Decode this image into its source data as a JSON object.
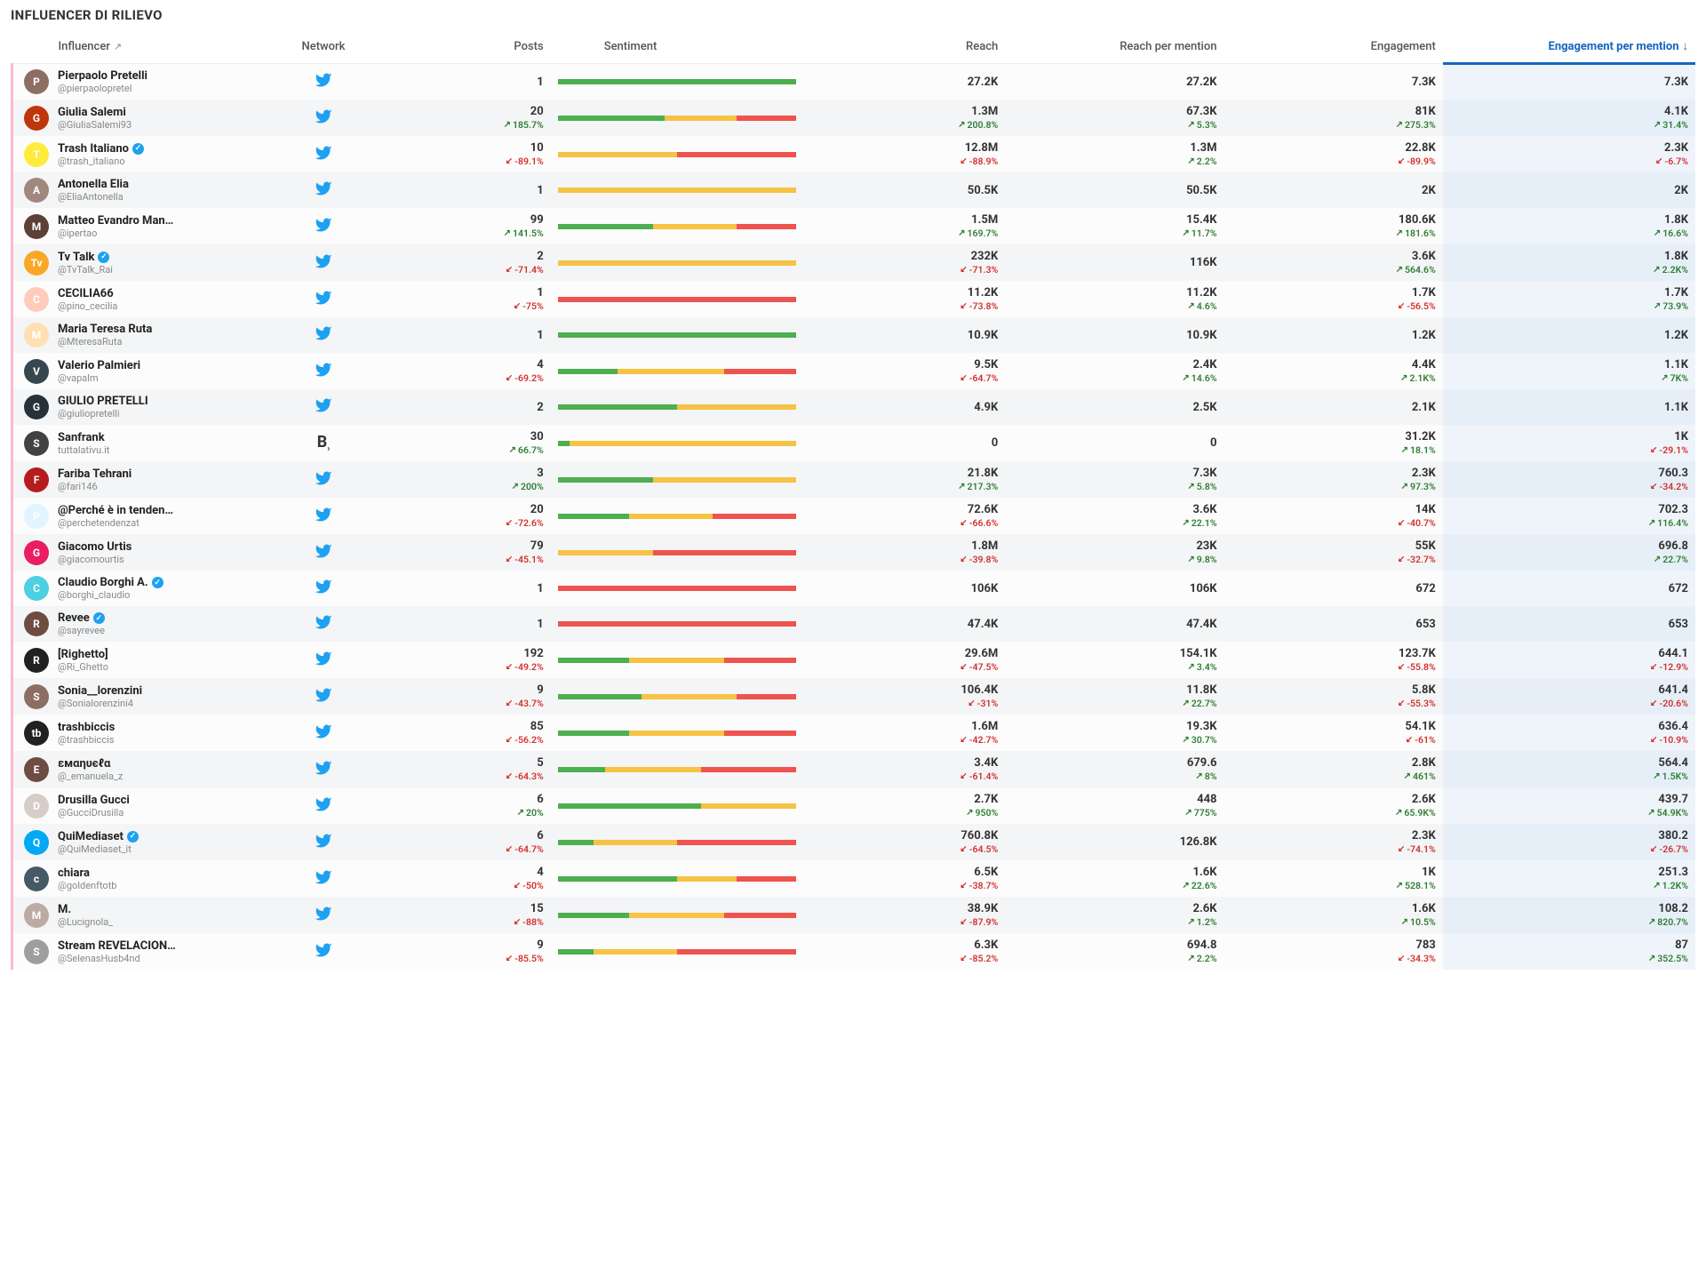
{
  "title": "INFLUENCER DI RILIEVO",
  "columns": {
    "influencer": "Influencer",
    "network": "Network",
    "posts": "Posts",
    "sentiment": "Sentiment",
    "reach": "Reach",
    "rpm": "Reach per mention",
    "engagement": "Engagement",
    "epm": "Engagement per mention"
  },
  "sort_indicator": "↓",
  "rows": [
    {
      "name": "Pierpaolo Pretelli",
      "handle": "@pierpaolopretel",
      "verified": false,
      "avatar_bg": "#8d6e63",
      "avatar_fg": "P",
      "network": "twitter",
      "posts": {
        "value": "1"
      },
      "sentiment": {
        "pos": 100,
        "neu": 0,
        "neg": 0
      },
      "reach": {
        "value": "27.2K"
      },
      "rpm": {
        "value": "27.2K"
      },
      "eng": {
        "value": "7.3K"
      },
      "epm": {
        "value": "7.3K"
      }
    },
    {
      "name": "Giulia Salemi",
      "handle": "@GiuliaSalemi93",
      "verified": false,
      "avatar_bg": "#bf360c",
      "avatar_fg": "G",
      "network": "twitter",
      "posts": {
        "value": "20",
        "delta": "185.7%",
        "dir": "up"
      },
      "sentiment": {
        "pos": 45,
        "neu": 30,
        "neg": 25
      },
      "reach": {
        "value": "1.3M",
        "delta": "200.8%",
        "dir": "up"
      },
      "rpm": {
        "value": "67.3K",
        "delta": "5.3%",
        "dir": "up"
      },
      "eng": {
        "value": "81K",
        "delta": "275.3%",
        "dir": "up"
      },
      "epm": {
        "value": "4.1K",
        "delta": "31.4%",
        "dir": "up"
      }
    },
    {
      "name": "Trash Italiano",
      "handle": "@trash_italiano",
      "verified": true,
      "avatar_bg": "#ffeb3b",
      "avatar_fg": "T",
      "network": "twitter",
      "posts": {
        "value": "10",
        "delta": "-89.1%",
        "dir": "down"
      },
      "sentiment": {
        "pos": 0,
        "neu": 50,
        "neg": 50
      },
      "reach": {
        "value": "12.8M",
        "delta": "-88.9%",
        "dir": "down"
      },
      "rpm": {
        "value": "1.3M",
        "delta": "2.2%",
        "dir": "up"
      },
      "eng": {
        "value": "22.8K",
        "delta": "-89.9%",
        "dir": "down"
      },
      "epm": {
        "value": "2.3K",
        "delta": "-6.7%",
        "dir": "down"
      }
    },
    {
      "name": "Antonella Elia",
      "handle": "@EliaAntonella",
      "verified": false,
      "avatar_bg": "#a1887f",
      "avatar_fg": "A",
      "network": "twitter",
      "posts": {
        "value": "1"
      },
      "sentiment": {
        "pos": 0,
        "neu": 100,
        "neg": 0
      },
      "reach": {
        "value": "50.5K"
      },
      "rpm": {
        "value": "50.5K"
      },
      "eng": {
        "value": "2K"
      },
      "epm": {
        "value": "2K"
      }
    },
    {
      "name": "Matteo Evandro Man…",
      "handle": "@ipertao",
      "verified": false,
      "avatar_bg": "#5d4037",
      "avatar_fg": "M",
      "network": "twitter",
      "posts": {
        "value": "99",
        "delta": "141.5%",
        "dir": "up"
      },
      "sentiment": {
        "pos": 40,
        "neu": 35,
        "neg": 25
      },
      "reach": {
        "value": "1.5M",
        "delta": "169.7%",
        "dir": "up"
      },
      "rpm": {
        "value": "15.4K",
        "delta": "11.7%",
        "dir": "up"
      },
      "eng": {
        "value": "180.6K",
        "delta": "181.6%",
        "dir": "up"
      },
      "epm": {
        "value": "1.8K",
        "delta": "16.6%",
        "dir": "up"
      }
    },
    {
      "name": "Tv Talk",
      "handle": "@TvTalk_Rai",
      "verified": true,
      "avatar_bg": "#f9a825",
      "avatar_fg": "Tv",
      "network": "twitter",
      "posts": {
        "value": "2",
        "delta": "-71.4%",
        "dir": "down"
      },
      "sentiment": {
        "pos": 0,
        "neu": 100,
        "neg": 0
      },
      "reach": {
        "value": "232K",
        "delta": "-71.3%",
        "dir": "down"
      },
      "rpm": {
        "value": "116K"
      },
      "eng": {
        "value": "3.6K",
        "delta": "564.6%",
        "dir": "up"
      },
      "epm": {
        "value": "1.8K",
        "delta": "2.2K%",
        "dir": "up"
      }
    },
    {
      "name": "CECILIA66",
      "handle": "@pino_cecilia",
      "verified": false,
      "avatar_bg": "#ffccbc",
      "avatar_fg": "C",
      "network": "twitter",
      "posts": {
        "value": "1",
        "delta": "-75%",
        "dir": "down"
      },
      "sentiment": {
        "pos": 0,
        "neu": 0,
        "neg": 100
      },
      "reach": {
        "value": "11.2K",
        "delta": "-73.8%",
        "dir": "down"
      },
      "rpm": {
        "value": "11.2K",
        "delta": "4.6%",
        "dir": "up"
      },
      "eng": {
        "value": "1.7K",
        "delta": "-56.5%",
        "dir": "down"
      },
      "epm": {
        "value": "1.7K",
        "delta": "73.9%",
        "dir": "up"
      }
    },
    {
      "name": "Maria Teresa Ruta",
      "handle": "@MteresaRuta",
      "verified": false,
      "avatar_bg": "#ffe0b2",
      "avatar_fg": "M",
      "network": "twitter",
      "posts": {
        "value": "1"
      },
      "sentiment": {
        "pos": 100,
        "neu": 0,
        "neg": 0
      },
      "reach": {
        "value": "10.9K"
      },
      "rpm": {
        "value": "10.9K"
      },
      "eng": {
        "value": "1.2K"
      },
      "epm": {
        "value": "1.2K"
      }
    },
    {
      "name": "Valerio Palmieri",
      "handle": "@vapalm",
      "verified": false,
      "avatar_bg": "#37474f",
      "avatar_fg": "V",
      "network": "twitter",
      "posts": {
        "value": "4",
        "delta": "-69.2%",
        "dir": "down"
      },
      "sentiment": {
        "pos": 25,
        "neu": 45,
        "neg": 30
      },
      "reach": {
        "value": "9.5K",
        "delta": "-64.7%",
        "dir": "down"
      },
      "rpm": {
        "value": "2.4K",
        "delta": "14.6%",
        "dir": "up"
      },
      "eng": {
        "value": "4.4K",
        "delta": "2.1K%",
        "dir": "up"
      },
      "epm": {
        "value": "1.1K",
        "delta": "7K%",
        "dir": "up"
      }
    },
    {
      "name": "GIULIO PRETELLI",
      "handle": "@giuliopretelli",
      "verified": false,
      "avatar_bg": "#263238",
      "avatar_fg": "G",
      "network": "twitter",
      "posts": {
        "value": "2"
      },
      "sentiment": {
        "pos": 50,
        "neu": 50,
        "neg": 0
      },
      "reach": {
        "value": "4.9K"
      },
      "rpm": {
        "value": "2.5K"
      },
      "eng": {
        "value": "2.1K"
      },
      "epm": {
        "value": "1.1K"
      }
    },
    {
      "name": "Sanfrank",
      "handle": "tuttalativu.it",
      "verified": false,
      "avatar_bg": "#424242",
      "avatar_fg": "S",
      "network": "blog",
      "posts": {
        "value": "30",
        "delta": "66.7%",
        "dir": "up"
      },
      "sentiment": {
        "pos": 5,
        "neu": 95,
        "neg": 0
      },
      "reach": {
        "value": "0"
      },
      "rpm": {
        "value": "0"
      },
      "eng": {
        "value": "31.2K",
        "delta": "18.1%",
        "dir": "up"
      },
      "epm": {
        "value": "1K",
        "delta": "-29.1%",
        "dir": "down"
      }
    },
    {
      "name": "Fariba Tehrani",
      "handle": "@fari146",
      "verified": false,
      "avatar_bg": "#b71c1c",
      "avatar_fg": "F",
      "network": "twitter",
      "posts": {
        "value": "3",
        "delta": "200%",
        "dir": "up"
      },
      "sentiment": {
        "pos": 40,
        "neu": 60,
        "neg": 0
      },
      "reach": {
        "value": "21.8K",
        "delta": "217.3%",
        "dir": "up"
      },
      "rpm": {
        "value": "7.3K",
        "delta": "5.8%",
        "dir": "up"
      },
      "eng": {
        "value": "2.3K",
        "delta": "97.3%",
        "dir": "up"
      },
      "epm": {
        "value": "760.3",
        "delta": "-34.2%",
        "dir": "down"
      }
    },
    {
      "name": "@Perché è in tenden…",
      "handle": "@perchetendenzat",
      "verified": false,
      "avatar_bg": "#e1f5fe",
      "avatar_fg": "P",
      "network": "twitter",
      "posts": {
        "value": "20",
        "delta": "-72.6%",
        "dir": "down"
      },
      "sentiment": {
        "pos": 30,
        "neu": 35,
        "neg": 35
      },
      "reach": {
        "value": "72.6K",
        "delta": "-66.6%",
        "dir": "down"
      },
      "rpm": {
        "value": "3.6K",
        "delta": "22.1%",
        "dir": "up"
      },
      "eng": {
        "value": "14K",
        "delta": "-40.7%",
        "dir": "down"
      },
      "epm": {
        "value": "702.3",
        "delta": "116.4%",
        "dir": "up"
      }
    },
    {
      "name": "Giacomo Urtis",
      "handle": "@giacomourtis",
      "verified": false,
      "avatar_bg": "#e91e63",
      "avatar_fg": "G",
      "network": "twitter",
      "posts": {
        "value": "79",
        "delta": "-45.1%",
        "dir": "down"
      },
      "sentiment": {
        "pos": 0,
        "neu": 40,
        "neg": 60
      },
      "reach": {
        "value": "1.8M",
        "delta": "-39.8%",
        "dir": "down"
      },
      "rpm": {
        "value": "23K",
        "delta": "9.8%",
        "dir": "up"
      },
      "eng": {
        "value": "55K",
        "delta": "-32.7%",
        "dir": "down"
      },
      "epm": {
        "value": "696.8",
        "delta": "22.7%",
        "dir": "up"
      }
    },
    {
      "name": "Claudio Borghi A.",
      "handle": "@borghi_claudio",
      "verified": true,
      "avatar_bg": "#4dd0e1",
      "avatar_fg": "C",
      "network": "twitter",
      "posts": {
        "value": "1"
      },
      "sentiment": {
        "pos": 0,
        "neu": 0,
        "neg": 100
      },
      "reach": {
        "value": "106K"
      },
      "rpm": {
        "value": "106K"
      },
      "eng": {
        "value": "672"
      },
      "epm": {
        "value": "672"
      }
    },
    {
      "name": "Revee",
      "handle": "@sayrevee",
      "verified": true,
      "avatar_bg": "#6d4c41",
      "avatar_fg": "R",
      "network": "twitter",
      "posts": {
        "value": "1"
      },
      "sentiment": {
        "pos": 0,
        "neu": 0,
        "neg": 100
      },
      "reach": {
        "value": "47.4K"
      },
      "rpm": {
        "value": "47.4K"
      },
      "eng": {
        "value": "653"
      },
      "epm": {
        "value": "653"
      }
    },
    {
      "name": "[Righetto]",
      "handle": "@Ri_Ghetto",
      "verified": false,
      "avatar_bg": "#212121",
      "avatar_fg": "R",
      "network": "twitter",
      "posts": {
        "value": "192",
        "delta": "-49.2%",
        "dir": "down"
      },
      "sentiment": {
        "pos": 30,
        "neu": 40,
        "neg": 30
      },
      "reach": {
        "value": "29.6M",
        "delta": "-47.5%",
        "dir": "down"
      },
      "rpm": {
        "value": "154.1K",
        "delta": "3.4%",
        "dir": "up"
      },
      "eng": {
        "value": "123.7K",
        "delta": "-55.8%",
        "dir": "down"
      },
      "epm": {
        "value": "644.1",
        "delta": "-12.9%",
        "dir": "down"
      }
    },
    {
      "name": "Sonia__lorenzini",
      "handle": "@Sonialorenzini4",
      "verified": false,
      "avatar_bg": "#8d6e63",
      "avatar_fg": "S",
      "network": "twitter",
      "posts": {
        "value": "9",
        "delta": "-43.7%",
        "dir": "down"
      },
      "sentiment": {
        "pos": 35,
        "neu": 40,
        "neg": 25
      },
      "reach": {
        "value": "106.4K",
        "delta": "-31%",
        "dir": "down"
      },
      "rpm": {
        "value": "11.8K",
        "delta": "22.7%",
        "dir": "up"
      },
      "eng": {
        "value": "5.8K",
        "delta": "-55.3%",
        "dir": "down"
      },
      "epm": {
        "value": "641.4",
        "delta": "-20.6%",
        "dir": "down"
      }
    },
    {
      "name": "trashbiccis",
      "handle": "@trashbiccis",
      "verified": false,
      "avatar_bg": "#212121",
      "avatar_fg": "tb",
      "network": "twitter",
      "posts": {
        "value": "85",
        "delta": "-56.2%",
        "dir": "down"
      },
      "sentiment": {
        "pos": 30,
        "neu": 40,
        "neg": 30
      },
      "reach": {
        "value": "1.6M",
        "delta": "-42.7%",
        "dir": "down"
      },
      "rpm": {
        "value": "19.3K",
        "delta": "30.7%",
        "dir": "up"
      },
      "eng": {
        "value": "54.1K",
        "delta": "-61%",
        "dir": "down"
      },
      "epm": {
        "value": "636.4",
        "delta": "-10.9%",
        "dir": "down"
      }
    },
    {
      "name": "εмαηυєℓα",
      "handle": "@_emanuela_z",
      "verified": false,
      "avatar_bg": "#6d4c41",
      "avatar_fg": "E",
      "network": "twitter",
      "posts": {
        "value": "5",
        "delta": "-64.3%",
        "dir": "down"
      },
      "sentiment": {
        "pos": 20,
        "neu": 40,
        "neg": 40
      },
      "reach": {
        "value": "3.4K",
        "delta": "-61.4%",
        "dir": "down"
      },
      "rpm": {
        "value": "679.6",
        "delta": "8%",
        "dir": "up"
      },
      "eng": {
        "value": "2.8K",
        "delta": "461%",
        "dir": "up"
      },
      "epm": {
        "value": "564.4",
        "delta": "1.5K%",
        "dir": "up"
      }
    },
    {
      "name": "Drusilla Gucci",
      "handle": "@GucciDrusilla",
      "verified": false,
      "avatar_bg": "#d7ccc8",
      "avatar_fg": "D",
      "network": "twitter",
      "posts": {
        "value": "6",
        "delta": "20%",
        "dir": "up"
      },
      "sentiment": {
        "pos": 60,
        "neu": 40,
        "neg": 0
      },
      "reach": {
        "value": "2.7K",
        "delta": "950%",
        "dir": "up"
      },
      "rpm": {
        "value": "448",
        "delta": "775%",
        "dir": "up"
      },
      "eng": {
        "value": "2.6K",
        "delta": "65.9K%",
        "dir": "up"
      },
      "epm": {
        "value": "439.7",
        "delta": "54.9K%",
        "dir": "up"
      }
    },
    {
      "name": "QuiMediaset",
      "handle": "@QuiMediaset_it",
      "verified": true,
      "avatar_bg": "#03a9f4",
      "avatar_fg": "Q",
      "network": "twitter",
      "posts": {
        "value": "6",
        "delta": "-64.7%",
        "dir": "down"
      },
      "sentiment": {
        "pos": 15,
        "neu": 35,
        "neg": 50
      },
      "reach": {
        "value": "760.8K",
        "delta": "-64.5%",
        "dir": "down"
      },
      "rpm": {
        "value": "126.8K"
      },
      "eng": {
        "value": "2.3K",
        "delta": "-74.1%",
        "dir": "down"
      },
      "epm": {
        "value": "380.2",
        "delta": "-26.7%",
        "dir": "down"
      }
    },
    {
      "name": "chiara",
      "handle": "@goldenftotb",
      "verified": false,
      "avatar_bg": "#455a64",
      "avatar_fg": "c",
      "network": "twitter",
      "posts": {
        "value": "4",
        "delta": "-50%",
        "dir": "down"
      },
      "sentiment": {
        "pos": 50,
        "neu": 25,
        "neg": 25
      },
      "reach": {
        "value": "6.5K",
        "delta": "-38.7%",
        "dir": "down"
      },
      "rpm": {
        "value": "1.6K",
        "delta": "22.6%",
        "dir": "up"
      },
      "eng": {
        "value": "1K",
        "delta": "528.1%",
        "dir": "up"
      },
      "epm": {
        "value": "251.3",
        "delta": "1.2K%",
        "dir": "up"
      }
    },
    {
      "name": "M.",
      "handle": "@Lucignola_",
      "verified": false,
      "avatar_bg": "#bcaaa4",
      "avatar_fg": "M",
      "network": "twitter",
      "posts": {
        "value": "15",
        "delta": "-88%",
        "dir": "down"
      },
      "sentiment": {
        "pos": 30,
        "neu": 40,
        "neg": 30
      },
      "reach": {
        "value": "38.9K",
        "delta": "-87.9%",
        "dir": "down"
      },
      "rpm": {
        "value": "2.6K",
        "delta": "1.2%",
        "dir": "up"
      },
      "eng": {
        "value": "1.6K",
        "delta": "10.5%",
        "dir": "up"
      },
      "epm": {
        "value": "108.2",
        "delta": "820.7%",
        "dir": "up"
      }
    },
    {
      "name": "Stream REVELACION…",
      "handle": "@SelenasHusb4nd",
      "verified": false,
      "avatar_bg": "#9e9e9e",
      "avatar_fg": "S",
      "network": "twitter",
      "posts": {
        "value": "9",
        "delta": "-85.5%",
        "dir": "down"
      },
      "sentiment": {
        "pos": 15,
        "neu": 35,
        "neg": 50
      },
      "reach": {
        "value": "6.3K",
        "delta": "-85.2%",
        "dir": "down"
      },
      "rpm": {
        "value": "694.8",
        "delta": "2.2%",
        "dir": "up"
      },
      "eng": {
        "value": "783",
        "delta": "-34.3%",
        "dir": "down"
      },
      "epm": {
        "value": "87",
        "delta": "352.5%",
        "dir": "up"
      }
    }
  ]
}
